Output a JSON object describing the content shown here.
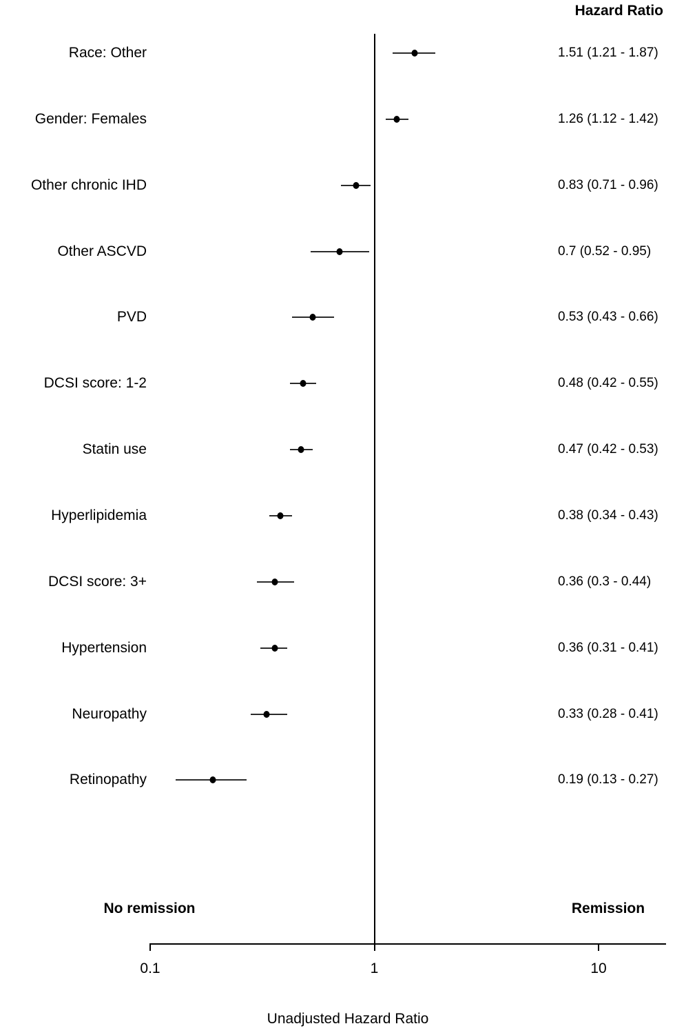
{
  "header": {
    "value_column_title": "Hazard Ratio"
  },
  "captions": {
    "left": "No remission",
    "right": "Remission"
  },
  "colors": {
    "foreground": "#000000",
    "background": "#ffffff",
    "whisker": "#2b2b2b",
    "dot": "#000000"
  },
  "chart_data": {
    "type": "scatter",
    "variant": "forest-plot",
    "value_column_header": "Hazard Ratio",
    "xlabel": "Unadjusted Hazard Ratio",
    "x_scale": "log10",
    "x_axis_range": [
      0.1,
      20
    ],
    "reference_line_x": 1,
    "grid": false,
    "x_ticks": [
      {
        "value": 0.1,
        "label": "0.1"
      },
      {
        "value": 1,
        "label": "1"
      },
      {
        "value": 10,
        "label": "10"
      }
    ],
    "direction_labels": {
      "left": "No remission",
      "right": "Remission"
    },
    "rows": [
      {
        "label": "Race: Other",
        "hr": 1.51,
        "ci_low": 1.21,
        "ci_high": 1.87,
        "text": "1.51 (1.21 - 1.87)"
      },
      {
        "label": "Gender: Females",
        "hr": 1.26,
        "ci_low": 1.12,
        "ci_high": 1.42,
        "text": "1.26 (1.12 - 1.42)"
      },
      {
        "label": "Other chronic IHD",
        "hr": 0.83,
        "ci_low": 0.71,
        "ci_high": 0.96,
        "text": "0.83 (0.71 - 0.96)"
      },
      {
        "label": "Other ASCVD",
        "hr": 0.7,
        "ci_low": 0.52,
        "ci_high": 0.95,
        "text": "0.7 (0.52 - 0.95)"
      },
      {
        "label": "PVD",
        "hr": 0.53,
        "ci_low": 0.43,
        "ci_high": 0.66,
        "text": "0.53 (0.43 - 0.66)"
      },
      {
        "label": "DCSI score: 1-2",
        "hr": 0.48,
        "ci_low": 0.42,
        "ci_high": 0.55,
        "text": "0.48 (0.42 - 0.55)"
      },
      {
        "label": "Statin use",
        "hr": 0.47,
        "ci_low": 0.42,
        "ci_high": 0.53,
        "text": "0.47 (0.42 - 0.53)"
      },
      {
        "label": "Hyperlipidemia",
        "hr": 0.38,
        "ci_low": 0.34,
        "ci_high": 0.43,
        "text": "0.38 (0.34 - 0.43)"
      },
      {
        "label": "DCSI score: 3+",
        "hr": 0.36,
        "ci_low": 0.3,
        "ci_high": 0.44,
        "text": "0.36 (0.3 - 0.44)"
      },
      {
        "label": "Hypertension",
        "hr": 0.36,
        "ci_low": 0.31,
        "ci_high": 0.41,
        "text": "0.36 (0.31 - 0.41)"
      },
      {
        "label": "Neuropathy",
        "hr": 0.33,
        "ci_low": 0.28,
        "ci_high": 0.41,
        "text": "0.33 (0.28 - 0.41)"
      },
      {
        "label": "Retinopathy",
        "hr": 0.19,
        "ci_low": 0.13,
        "ci_high": 0.27,
        "text": "0.19 (0.13 - 0.27)"
      }
    ]
  }
}
